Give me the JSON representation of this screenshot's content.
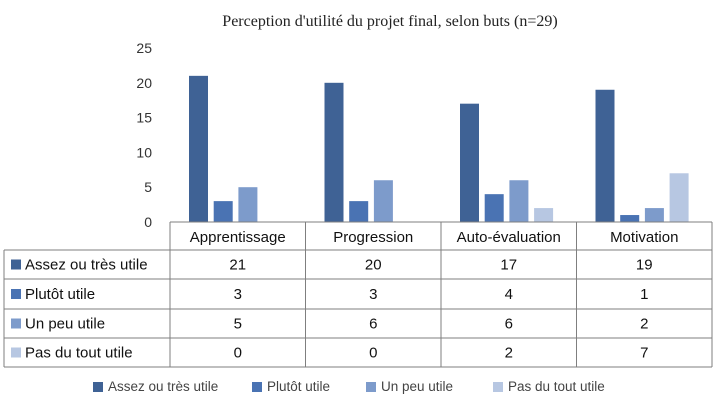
{
  "chart_data": {
    "type": "bar",
    "title": "Perception d'utilité du projet final, selon buts (n=29)",
    "categories": [
      "Apprentissage",
      "Progression",
      "Auto-évaluation",
      "Motivation"
    ],
    "series": [
      {
        "name": "Assez ou très utile",
        "values": [
          21,
          20,
          17,
          19
        ],
        "color": "#3f6295"
      },
      {
        "name": "Plutôt utile",
        "values": [
          3,
          3,
          4,
          1
        ],
        "color": "#4a73b3"
      },
      {
        "name": "Un peu utile",
        "values": [
          5,
          6,
          6,
          2
        ],
        "color": "#7d9bcb"
      },
      {
        "name": "Pas du tout utile",
        "values": [
          0,
          0,
          2,
          7
        ],
        "color": "#b7c7e2"
      }
    ],
    "ylim": [
      0,
      25
    ],
    "yticks": [
      0,
      5,
      10,
      15,
      20,
      25
    ],
    "grid": false,
    "legend": "bottom",
    "data_table": true
  }
}
